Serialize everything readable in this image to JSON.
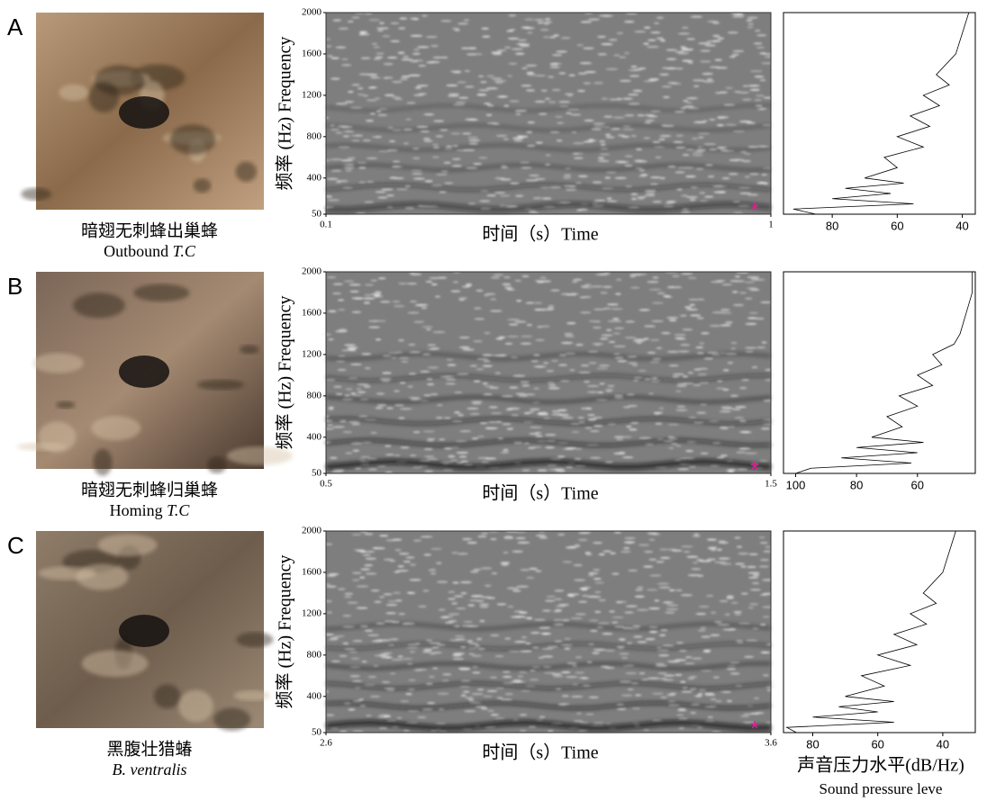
{
  "panels": [
    {
      "label": "A",
      "caption_zh": "暗翅无刺蜂出巢蜂",
      "caption_en": "Outbound",
      "caption_species": "T.C",
      "spectrogram": {
        "type": "spectrogram",
        "ylabel": "频率 (Hz) Frequency",
        "xlabel": "时间（s）Time",
        "xlim": [
          0.1,
          1
        ],
        "xticks": [
          0.1,
          1
        ],
        "ylim": [
          50,
          2000
        ],
        "yticks": [
          50,
          400,
          800,
          1200,
          1600,
          2000
        ],
        "marker": "*"
      },
      "spectrum": {
        "type": "line",
        "xlim": [
          95,
          36
        ],
        "xticks": [
          80,
          60,
          40
        ],
        "ylim": [
          50,
          2000
        ],
        "frequency": [
          50,
          100,
          150,
          200,
          250,
          300,
          350,
          400,
          500,
          600,
          700,
          800,
          900,
          1000,
          1100,
          1200,
          1300,
          1400,
          1600,
          1800,
          2000
        ],
        "level": [
          85,
          92,
          55,
          80,
          62,
          76,
          58,
          70,
          60,
          64,
          52,
          60,
          50,
          56,
          47,
          52,
          44,
          48,
          42,
          40,
          38
        ]
      }
    },
    {
      "label": "B",
      "caption_zh": "暗翅无刺蜂归巢蜂",
      "caption_en": "Homing",
      "caption_species": "T.C",
      "spectrogram": {
        "type": "spectrogram",
        "ylabel": "频率 (Hz) Frequency",
        "xlabel": "时间（s）Time",
        "xlim": [
          0.5,
          1.5
        ],
        "xticks": [
          0.5,
          1.5
        ],
        "ylim": [
          50,
          2000
        ],
        "yticks": [
          50,
          400,
          800,
          1200,
          1600,
          2000
        ],
        "marker": "*"
      },
      "spectrum": {
        "type": "line",
        "xlim": [
          104,
          41
        ],
        "xticks": [
          100,
          80,
          60
        ],
        "ylim": [
          50,
          2000
        ],
        "frequency": [
          50,
          100,
          150,
          200,
          250,
          300,
          350,
          400,
          500,
          600,
          700,
          800,
          900,
          1000,
          1100,
          1200,
          1300,
          1400,
          1600,
          1800,
          2000
        ],
        "level": [
          100,
          95,
          62,
          85,
          60,
          80,
          58,
          75,
          65,
          70,
          60,
          66,
          55,
          60,
          52,
          55,
          48,
          46,
          44,
          42,
          42
        ]
      }
    },
    {
      "label": "C",
      "caption_zh": "黑腹壮猎蝽",
      "caption_en": "",
      "caption_species": "B. ventralis",
      "spectrogram": {
        "type": "spectrogram",
        "ylabel": "频率 (Hz) Frequency",
        "xlabel": "时间（s）Time",
        "xlim": [
          2.6,
          3.6
        ],
        "xticks": [
          2.6,
          3.6
        ],
        "ylim": [
          50,
          2000
        ],
        "yticks": [
          50,
          400,
          800,
          1200,
          1600,
          2000
        ],
        "marker": "*"
      },
      "spectrum": {
        "type": "line",
        "xlim": [
          89,
          30
        ],
        "xticks": [
          80,
          60,
          40
        ],
        "ylim": [
          50,
          2000
        ],
        "frequency": [
          50,
          100,
          150,
          200,
          250,
          300,
          350,
          400,
          500,
          600,
          700,
          800,
          900,
          1000,
          1100,
          1200,
          1300,
          1400,
          1600,
          1800,
          2000
        ],
        "level": [
          85,
          88,
          55,
          80,
          60,
          72,
          55,
          70,
          58,
          65,
          50,
          60,
          48,
          55,
          45,
          50,
          42,
          46,
          40,
          38,
          36
        ]
      }
    }
  ],
  "spectrum_xlabel": "声音压力水平(dB/Hz)",
  "spectrum_xlabel_en": "Sound pressure leve"
}
